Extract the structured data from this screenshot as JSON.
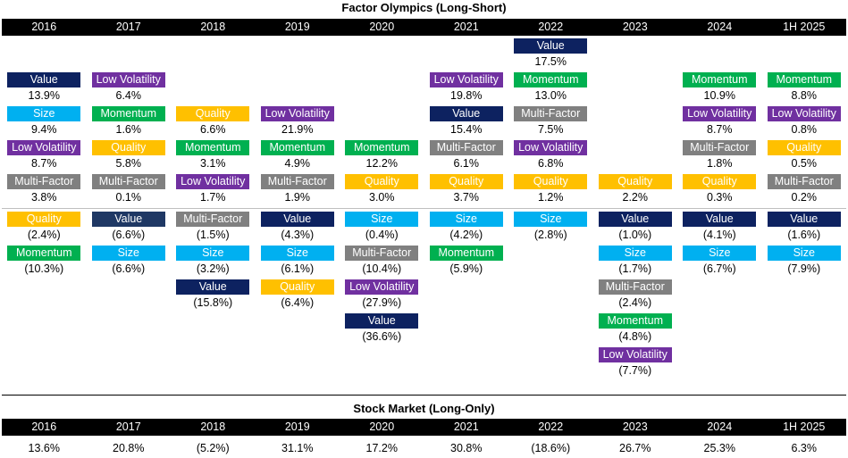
{
  "chart_data": [
    {
      "type": "table",
      "title": "Factor Olympics (Long-Short)",
      "categories": [
        "2016",
        "2017",
        "2018",
        "2019",
        "2020",
        "2021",
        "2022",
        "2023",
        "2024",
        "1H 2025"
      ],
      "factor_colors": {
        "Value": "#0d2260",
        "Size": "#00b0f0",
        "Low Volatility": "#7030a0",
        "Multi-Factor": "#808080",
        "Quality": "#ffc000",
        "Momentum": "#00b050"
      },
      "columns": [
        {
          "year": "2016",
          "entries": [
            {
              "factor": "Value",
              "value": "13.9%",
              "num": 13.9
            },
            {
              "factor": "Size",
              "value": "9.4%",
              "num": 9.4
            },
            {
              "factor": "Low Volatility",
              "value": "8.7%",
              "num": 8.7
            },
            {
              "factor": "Multi-Factor",
              "value": "3.8%",
              "num": 3.8
            },
            {
              "factor": "Quality",
              "value": "(2.4%)",
              "num": -2.4
            },
            {
              "factor": "Momentum",
              "value": "(10.3%)",
              "num": -10.3
            }
          ]
        },
        {
          "year": "2017",
          "entries": [
            {
              "factor": "Low Volatility",
              "value": "6.4%",
              "num": 6.4
            },
            {
              "factor": "Momentum",
              "value": "1.6%",
              "num": 1.6
            },
            {
              "factor": "Quality",
              "value": "5.8%",
              "num": 5.8
            },
            {
              "factor": "Multi-Factor",
              "value": "0.1%",
              "num": 0.1
            },
            {
              "factor": "Value",
              "value": "(6.6%)",
              "num": -6.6,
              "color": "#1f3864"
            },
            {
              "factor": "Size",
              "value": "(6.6%)",
              "num": -6.6
            }
          ]
        },
        {
          "year": "2018",
          "entries": [
            {
              "factor": "Quality",
              "value": "6.6%",
              "num": 6.6
            },
            {
              "factor": "Momentum",
              "value": "3.1%",
              "num": 3.1
            },
            {
              "factor": "Low Volatility",
              "value": "1.7%",
              "num": 1.7
            },
            {
              "factor": "Multi-Factor",
              "value": "(1.5%)",
              "num": -1.5
            },
            {
              "factor": "Size",
              "value": "(3.2%)",
              "num": -3.2
            },
            {
              "factor": "Value",
              "value": "(15.8%)",
              "num": -15.8
            }
          ]
        },
        {
          "year": "2019",
          "entries": [
            {
              "factor": "Low Volatility",
              "value": "21.9%",
              "num": 21.9
            },
            {
              "factor": "Momentum",
              "value": "4.9%",
              "num": 4.9
            },
            {
              "factor": "Multi-Factor",
              "value": "1.9%",
              "num": 1.9
            },
            {
              "factor": "Value",
              "value": "(4.3%)",
              "num": -4.3
            },
            {
              "factor": "Size",
              "value": "(6.1%)",
              "num": -6.1
            },
            {
              "factor": "Quality",
              "value": "(6.4%)",
              "num": -6.4
            }
          ]
        },
        {
          "year": "2020",
          "entries": [
            {
              "factor": "Momentum",
              "value": "12.2%",
              "num": 12.2
            },
            {
              "factor": "Quality",
              "value": "3.0%",
              "num": 3.0
            },
            {
              "factor": "Size",
              "value": "(0.4%)",
              "num": -0.4
            },
            {
              "factor": "Multi-Factor",
              "value": "(10.4%)",
              "num": -10.4
            },
            {
              "factor": "Low Volatility",
              "value": "(27.9%)",
              "num": -27.9
            },
            {
              "factor": "Value",
              "value": "(36.6%)",
              "num": -36.6
            }
          ]
        },
        {
          "year": "2021",
          "entries": [
            {
              "factor": "Low Volatility",
              "value": "19.8%",
              "num": 19.8
            },
            {
              "factor": "Value",
              "value": "15.4%",
              "num": 15.4
            },
            {
              "factor": "Multi-Factor",
              "value": "6.1%",
              "num": 6.1
            },
            {
              "factor": "Quality",
              "value": "3.7%",
              "num": 3.7
            },
            {
              "factor": "Size",
              "value": "(4.2%)",
              "num": -4.2
            },
            {
              "factor": "Momentum",
              "value": "(5.9%)",
              "num": -5.9
            }
          ]
        },
        {
          "year": "2022",
          "entries": [
            {
              "factor": "Value",
              "value": "17.5%",
              "num": 17.5
            },
            {
              "factor": "Momentum",
              "value": "13.0%",
              "num": 13.0
            },
            {
              "factor": "Multi-Factor",
              "value": "7.5%",
              "num": 7.5
            },
            {
              "factor": "Low Volatility",
              "value": "6.8%",
              "num": 6.8
            },
            {
              "factor": "Quality",
              "value": "1.2%",
              "num": 1.2
            },
            {
              "factor": "Size",
              "value": "(2.8%)",
              "num": -2.8
            }
          ]
        },
        {
          "year": "2023",
          "entries": [
            {
              "factor": "Quality",
              "value": "2.2%",
              "num": 2.2
            },
            {
              "factor": "Value",
              "value": "(1.0%)",
              "num": -1.0
            },
            {
              "factor": "Size",
              "value": "(1.7%)",
              "num": -1.7
            },
            {
              "factor": "Multi-Factor",
              "value": "(2.4%)",
              "num": -2.4
            },
            {
              "factor": "Momentum",
              "value": "(4.8%)",
              "num": -4.8
            },
            {
              "factor": "Low Volatility",
              "value": "(7.7%)",
              "num": -7.7
            }
          ]
        },
        {
          "year": "2024",
          "entries": [
            {
              "factor": "Momentum",
              "value": "10.9%",
              "num": 10.9
            },
            {
              "factor": "Low Volatility",
              "value": "8.7%",
              "num": 8.7
            },
            {
              "factor": "Multi-Factor",
              "value": "1.8%",
              "num": 1.8
            },
            {
              "factor": "Quality",
              "value": "0.3%",
              "num": 0.3
            },
            {
              "factor": "Value",
              "value": "(4.1%)",
              "num": -4.1
            },
            {
              "factor": "Size",
              "value": "(6.7%)",
              "num": -6.7
            }
          ]
        },
        {
          "year": "1H 2025",
          "entries": [
            {
              "factor": "Momentum",
              "value": "8.8%",
              "num": 8.8
            },
            {
              "factor": "Low Volatility",
              "value": "0.8%",
              "num": 0.8
            },
            {
              "factor": "Quality",
              "value": "0.5%",
              "num": 0.5
            },
            {
              "factor": "Multi-Factor",
              "value": "0.2%",
              "num": 0.2
            },
            {
              "factor": "Value",
              "value": "(1.6%)",
              "num": -1.6
            },
            {
              "factor": "Size",
              "value": "(7.9%)",
              "num": -7.9
            }
          ]
        }
      ]
    },
    {
      "type": "table",
      "title": "Stock Market (Long-Only)",
      "categories": [
        "2016",
        "2017",
        "2018",
        "2019",
        "2020",
        "2021",
        "2022",
        "2023",
        "2024",
        "1H 2025"
      ],
      "values": [
        "13.6%",
        "20.8%",
        "(5.2%)",
        "31.1%",
        "17.2%",
        "30.8%",
        "(18.6%)",
        "26.7%",
        "25.3%",
        "6.3%"
      ],
      "nums": [
        13.6,
        20.8,
        -5.2,
        31.1,
        17.2,
        30.8,
        -18.6,
        26.7,
        25.3,
        6.3
      ]
    }
  ]
}
